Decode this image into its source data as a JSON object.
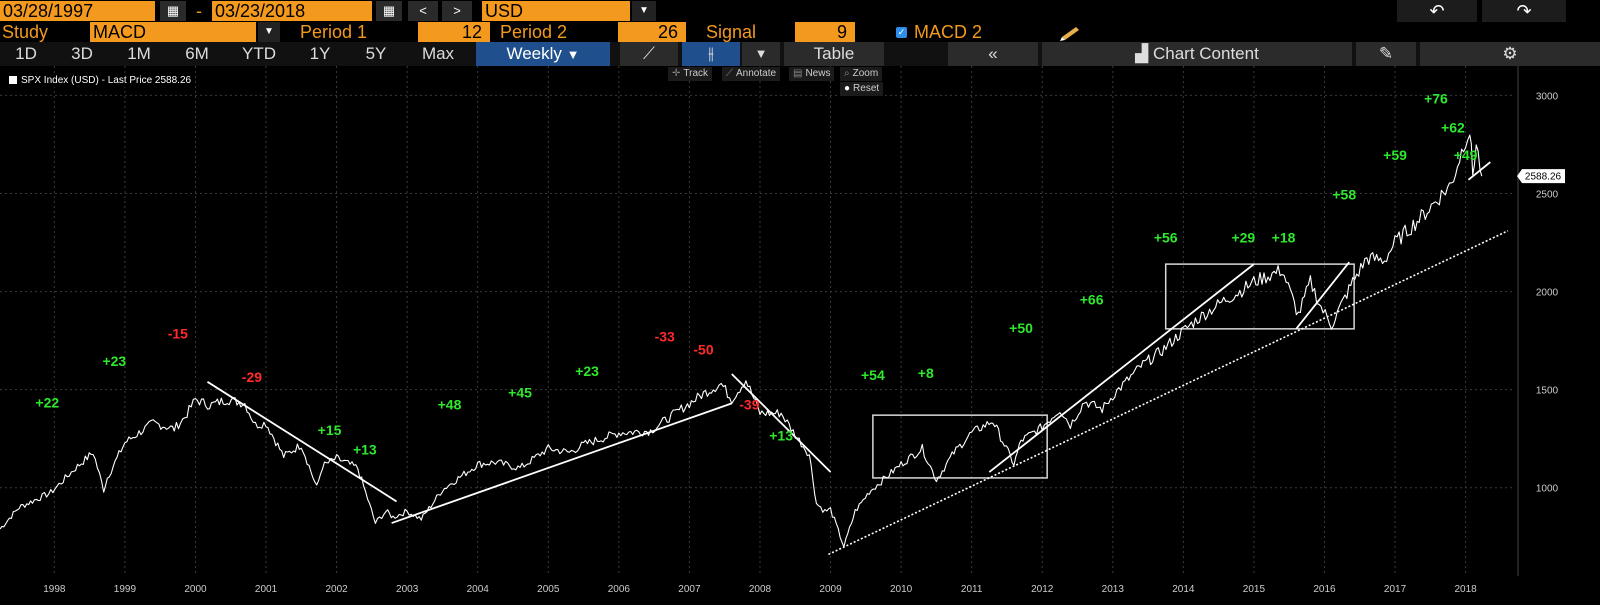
{
  "toolbar": {
    "start_date": "03/28/1997",
    "date_sep": "-",
    "end_date": "03/23/2018",
    "prev": "<",
    "next": ">",
    "currency": "USD",
    "undo_icon": "undo-icon",
    "redo_icon": "redo-icon"
  },
  "study": {
    "label": "Study",
    "value": "MACD",
    "period1_label": "Period 1",
    "period1_value": "12",
    "period2_label": "Period 2",
    "period2_value": "26",
    "signal_label": "Signal",
    "signal_value": "9",
    "macd2_label": "MACD 2",
    "macd2_checked": true
  },
  "tabs": [
    "1D",
    "3D",
    "1M",
    "6M",
    "YTD",
    "1Y",
    "5Y",
    "Max"
  ],
  "frequency": "Weekly",
  "table_label": "Table",
  "chart_content_label": "Chart Content",
  "legend": "SPX Index (USD) - Last Price 2588.26",
  "mini_toolbar": {
    "track": "Track",
    "annotate": "Annotate",
    "news": "News",
    "zoom": "Zoom",
    "reset": "Reset"
  },
  "colors": {
    "accent": "#f39a1e",
    "selected": "#1f4f8c",
    "positive": "#2ee82e",
    "negative": "#ff2a2a",
    "price": "#ffffff"
  },
  "chart_data": {
    "type": "line",
    "title": "",
    "xlabel": "",
    "ylabel": "",
    "x_ticks": [
      "1998",
      "1999",
      "2000",
      "2001",
      "2002",
      "2003",
      "2004",
      "2005",
      "2006",
      "2007",
      "2008",
      "2009",
      "2010",
      "2011",
      "2012",
      "2013",
      "2014",
      "2015",
      "2016",
      "2017",
      "2018"
    ],
    "y_ticks": [
      1000,
      1500,
      2000,
      2500,
      3000
    ],
    "xlim": [
      1997.23,
      2018.7
    ],
    "ylim": [
      550,
      3150
    ],
    "last_price_label": "2588.26",
    "last_price": 2588.26,
    "series": [
      {
        "x": [
          1997.23,
          1997.5,
          1997.8,
          1997.95,
          1998.3,
          1998.55,
          1998.7,
          1998.75,
          1999.0,
          1999.4,
          1999.7,
          1999.85,
          2000.0,
          2000.2,
          2000.45,
          2000.7,
          2000.85,
          2001.0,
          2001.25,
          2001.5,
          2001.72,
          2001.8,
          2002.0,
          2002.3,
          2002.55,
          2002.7,
          2002.8,
          2003.0,
          2003.2,
          2003.5,
          2004.0,
          2004.25,
          2004.6,
          2005.0,
          2005.3,
          2005.5,
          2006.0,
          2006.45,
          2006.8,
          2007.0,
          2007.2,
          2007.45,
          2007.6,
          2007.8,
          2008.0,
          2008.3,
          2008.5,
          2008.7,
          2008.8,
          2008.92,
          2009.0,
          2009.19,
          2009.35,
          2009.55,
          2010.0,
          2010.3,
          2010.5,
          2010.75,
          2011.0,
          2011.3,
          2011.6,
          2011.7,
          2012.0,
          2012.25,
          2012.4,
          2012.6,
          2012.85,
          2013.0,
          2013.4,
          2013.7,
          2014.0,
          2014.2,
          2014.6,
          2014.8,
          2015.0,
          2015.4,
          2015.63,
          2015.8,
          2015.95,
          2016.1,
          2016.4,
          2016.6,
          2016.85,
          2017.0,
          2017.4,
          2017.8,
          2018.0,
          2018.06,
          2018.1,
          2018.15,
          2018.23
        ],
        "y": [
          790,
          900,
          950,
          975,
          1100,
          1180,
          990,
          1050,
          1230,
          1330,
          1300,
          1360,
          1450,
          1420,
          1450,
          1430,
          1320,
          1330,
          1160,
          1220,
          1000,
          1110,
          1150,
          1100,
          820,
          880,
          850,
          880,
          840,
          990,
          1120,
          1130,
          1100,
          1200,
          1180,
          1220,
          1280,
          1290,
          1380,
          1430,
          1480,
          1530,
          1450,
          1550,
          1380,
          1380,
          1270,
          1170,
          920,
          880,
          890,
          700,
          880,
          980,
          1120,
          1200,
          1040,
          1180,
          1280,
          1340,
          1120,
          1240,
          1310,
          1400,
          1320,
          1440,
          1400,
          1470,
          1620,
          1700,
          1800,
          1860,
          1960,
          2000,
          2050,
          2110,
          1880,
          2050,
          1920,
          1830,
          2050,
          2170,
          2160,
          2250,
          2390,
          2550,
          2780,
          2820,
          2600,
          2750,
          2588
        ]
      }
    ],
    "annotations": [
      {
        "text": "+22",
        "x": 1997.9,
        "y": 1410,
        "color": "positive"
      },
      {
        "text": "+23",
        "x": 1998.85,
        "y": 1620,
        "color": "positive"
      },
      {
        "text": "-15",
        "x": 1999.75,
        "y": 1760,
        "color": "negative"
      },
      {
        "text": "-29",
        "x": 2000.8,
        "y": 1540,
        "color": "negative"
      },
      {
        "text": "+15",
        "x": 2001.9,
        "y": 1270,
        "color": "positive"
      },
      {
        "text": "+13",
        "x": 2002.4,
        "y": 1170,
        "color": "positive"
      },
      {
        "text": "+48",
        "x": 2003.6,
        "y": 1400,
        "color": "positive"
      },
      {
        "text": "+45",
        "x": 2004.6,
        "y": 1460,
        "color": "positive"
      },
      {
        "text": "+23",
        "x": 2005.55,
        "y": 1570,
        "color": "positive"
      },
      {
        "text": "-33",
        "x": 2006.65,
        "y": 1745,
        "color": "negative"
      },
      {
        "text": "-50",
        "x": 2007.2,
        "y": 1680,
        "color": "negative"
      },
      {
        "text": "-39",
        "x": 2007.85,
        "y": 1400,
        "color": "negative"
      },
      {
        "text": "+13",
        "x": 2008.3,
        "y": 1240,
        "color": "positive"
      },
      {
        "text": "+54",
        "x": 2009.6,
        "y": 1550,
        "color": "positive"
      },
      {
        "text": "+8",
        "x": 2010.35,
        "y": 1560,
        "color": "positive"
      },
      {
        "text": "+50",
        "x": 2011.7,
        "y": 1790,
        "color": "positive"
      },
      {
        "text": "+66",
        "x": 2012.7,
        "y": 1935,
        "color": "positive"
      },
      {
        "text": "+56",
        "x": 2013.75,
        "y": 2250,
        "color": "positive"
      },
      {
        "text": "+29",
        "x": 2014.85,
        "y": 2250,
        "color": "positive"
      },
      {
        "text": "+18",
        "x": 2015.42,
        "y": 2250,
        "color": "positive"
      },
      {
        "text": "+58",
        "x": 2016.28,
        "y": 2470,
        "color": "positive"
      },
      {
        "text": "+59",
        "x": 2017.0,
        "y": 2670,
        "color": "positive"
      },
      {
        "text": "+76",
        "x": 2017.58,
        "y": 2960,
        "color": "positive"
      },
      {
        "text": "+62",
        "x": 2017.82,
        "y": 2810,
        "color": "positive"
      },
      {
        "text": "+49",
        "x": 2018.0,
        "y": 2670,
        "color": "positive"
      }
    ],
    "trendlines": [
      {
        "from": [
          2000.17,
          1540
        ],
        "to": [
          2002.85,
          930
        ],
        "style": "solid"
      },
      {
        "from": [
          2002.78,
          820
        ],
        "to": [
          2007.6,
          1430
        ],
        "style": "solid"
      },
      {
        "from": [
          2007.6,
          1580
        ],
        "to": [
          2009.0,
          1080
        ],
        "style": "solid"
      },
      {
        "from": [
          2011.25,
          1080
        ],
        "to": [
          2015.0,
          2140
        ],
        "style": "solid"
      },
      {
        "from": [
          2015.6,
          1810
        ],
        "to": [
          2016.35,
          2150
        ],
        "style": "solid"
      },
      {
        "from": [
          2018.04,
          2570
        ],
        "to": [
          2018.35,
          2660
        ],
        "style": "solid"
      },
      {
        "from": [
          2008.97,
          660
        ],
        "to": [
          2018.6,
          2310
        ],
        "style": "dotted"
      }
    ],
    "boxes": [
      {
        "x0": 2009.6,
        "x1": 2012.07,
        "y0": 1050,
        "y1": 1370
      },
      {
        "x0": 2013.75,
        "x1": 2016.42,
        "y0": 1810,
        "y1": 2140
      }
    ]
  }
}
